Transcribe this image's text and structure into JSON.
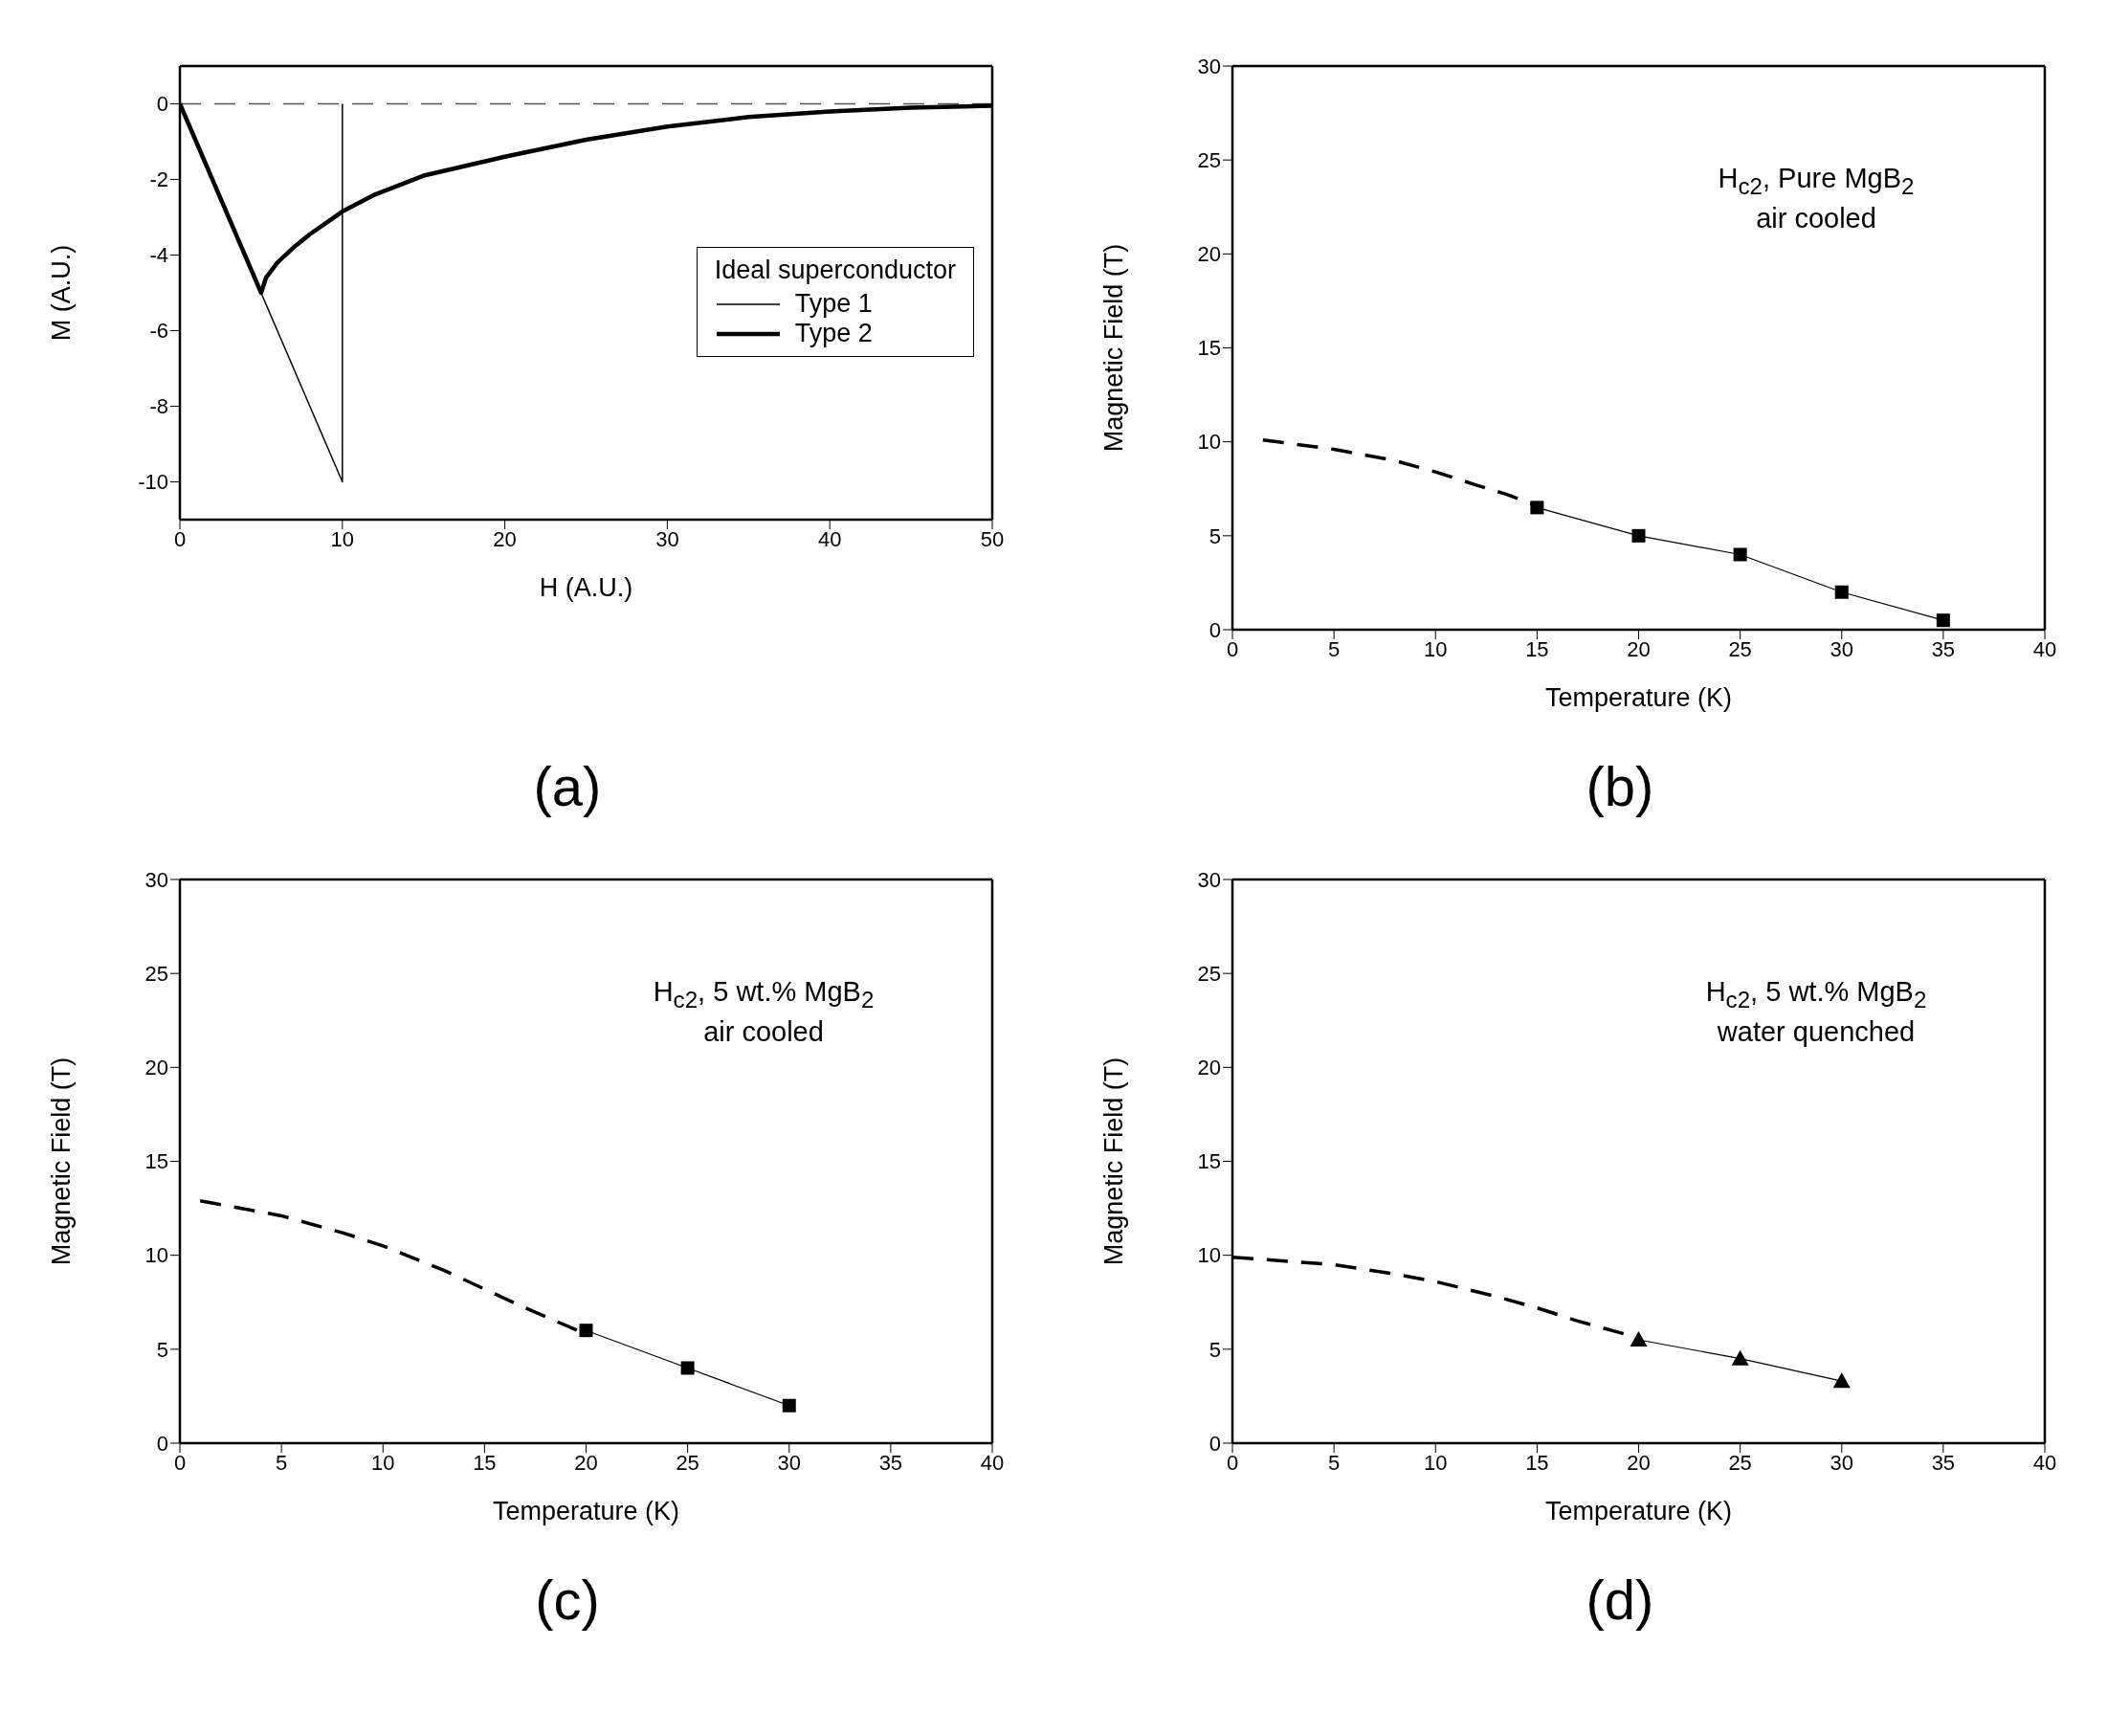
{
  "chart_data": [
    {
      "type": "line",
      "title": "(a)",
      "xlabel": "H (A.U.)",
      "ylabel": "M (A.U.)",
      "legend_title": "Ideal superconductor",
      "legend": "right",
      "xlim": [
        0,
        50
      ],
      "xticks": [
        0,
        10,
        20,
        30,
        40,
        50
      ],
      "ylim": [
        -11,
        1
      ],
      "yticks": [
        0,
        -2,
        -4,
        -6,
        -8,
        -10
      ],
      "marker": "none",
      "line_style": "solid",
      "series": [
        {
          "name": "Type 1",
          "color": "#000000",
          "x": [
            0,
            10,
            10
          ],
          "values": [
            0,
            -10,
            0
          ]
        },
        {
          "name": "Type 2",
          "color": "#000000",
          "x": [
            0,
            5,
            5.3,
            6,
            7,
            8,
            10,
            12,
            15,
            20,
            25,
            30,
            35,
            40,
            45,
            50
          ],
          "values": [
            0,
            -5,
            -4.6,
            -4.2,
            -3.8,
            -3.45,
            -2.85,
            -2.4,
            -1.9,
            -1.4,
            -0.95,
            -0.6,
            -0.35,
            -0.2,
            -0.1,
            -0.05
          ]
        }
      ],
      "ref_lines": [
        {
          "axis": "y",
          "value": 0,
          "color": "#555555",
          "line_style": "dashed"
        }
      ]
    },
    {
      "type": "line",
      "title": "(b)",
      "xlabel": "Temperature (K)",
      "ylabel": "Magnetic Field (T)",
      "annotations": [
        "H$_{c2}$, Pure MgB$_{2}$",
        "air cooled"
      ],
      "xlim": [
        0,
        40
      ],
      "xticks": [
        0,
        5,
        10,
        15,
        20,
        25,
        30,
        35,
        40
      ],
      "ylim": [
        0,
        30
      ],
      "yticks": [
        0,
        5,
        10,
        15,
        20,
        25,
        30
      ],
      "series": [
        {
          "color": "#000000",
          "line_style": "dashed",
          "marker": "none",
          "x": [
            1.5,
            5,
            8,
            10,
            12,
            13.5,
            15
          ],
          "values": [
            10.1,
            9.6,
            9,
            8.4,
            7.7,
            7.2,
            6.6
          ]
        },
        {
          "color": "#000000",
          "line_style": "solid",
          "marker": "square",
          "x": [
            15,
            20,
            25,
            30,
            35
          ],
          "values": [
            6.5,
            5,
            4,
            2,
            0.5
          ]
        }
      ]
    },
    {
      "type": "line",
      "title": "(c)",
      "xlabel": "Temperature (K)",
      "ylabel": "Magnetic Field (T)",
      "annotations": [
        "H$_{c2}$, 5 wt.% MgB$_{2}$",
        "air cooled"
      ],
      "xlim": [
        0,
        40
      ],
      "xticks": [
        0,
        5,
        10,
        15,
        20,
        25,
        30,
        35,
        40
      ],
      "ylim": [
        0,
        30
      ],
      "yticks": [
        0,
        5,
        10,
        15,
        20,
        25,
        30
      ],
      "series": [
        {
          "color": "#000000",
          "line_style": "dashed",
          "marker": "none",
          "x": [
            1,
            5,
            8,
            10,
            13,
            15,
            17,
            20
          ],
          "values": [
            12.9,
            12.1,
            11.2,
            10.5,
            9.2,
            8.2,
            7.2,
            5.8
          ]
        },
        {
          "color": "#000000",
          "line_style": "solid",
          "marker": "square",
          "x": [
            20,
            25,
            30
          ],
          "values": [
            6,
            4,
            2
          ]
        }
      ]
    },
    {
      "type": "line",
      "title": "(d)",
      "xlabel": "Temperature (K)",
      "ylabel": "Magnetic Field (T)",
      "annotations": [
        "H$_{c2}$, 5 wt.% MgB$_{2}$",
        "water quenched"
      ],
      "xlim": [
        0,
        40
      ],
      "xticks": [
        0,
        5,
        10,
        15,
        20,
        25,
        30,
        35,
        40
      ],
      "ylim": [
        0,
        30
      ],
      "yticks": [
        0,
        5,
        10,
        15,
        20,
        25,
        30
      ],
      "series": [
        {
          "color": "#000000",
          "line_style": "dashed",
          "marker": "none",
          "x": [
            0,
            5,
            8,
            10,
            13,
            15,
            17,
            20
          ],
          "values": [
            9.9,
            9.5,
            9,
            8.6,
            7.8,
            7.2,
            6.5,
            5.6
          ]
        },
        {
          "color": "#000000",
          "line_style": "solid",
          "marker": "triangle",
          "x": [
            20,
            25,
            30
          ],
          "values": [
            5.5,
            4.5,
            3.3
          ]
        }
      ]
    }
  ]
}
